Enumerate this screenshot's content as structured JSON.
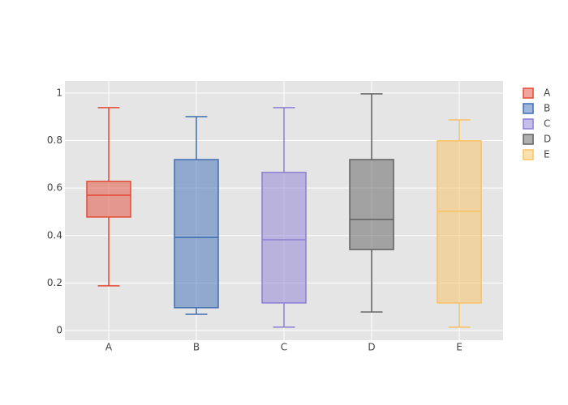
{
  "chart_data": {
    "type": "box",
    "categories": [
      "A",
      "B",
      "C",
      "D",
      "E"
    ],
    "series": [
      {
        "name": "A",
        "color": "#e34a33",
        "min": 0.188,
        "q1": 0.478,
        "median": 0.57,
        "q3": 0.628,
        "max": 0.939
      },
      {
        "name": "B",
        "color": "#3d6eb4",
        "min": 0.068,
        "q1": 0.096,
        "median": 0.392,
        "q3": 0.72,
        "max": 0.901
      },
      {
        "name": "C",
        "color": "#8c7fd4",
        "min": 0.014,
        "q1": 0.116,
        "median": 0.382,
        "q3": 0.666,
        "max": 0.939
      },
      {
        "name": "D",
        "color": "#606060",
        "min": 0.078,
        "q1": 0.341,
        "median": 0.468,
        "q3": 0.72,
        "max": 0.997
      },
      {
        "name": "E",
        "color": "#f9c261",
        "min": 0.014,
        "q1": 0.116,
        "median": 0.502,
        "q3": 0.799,
        "max": 0.887
      }
    ],
    "ylim": [
      -0.041,
      1.051
    ],
    "yticks": [
      0,
      0.2,
      0.4,
      0.6,
      0.8,
      1
    ],
    "grid": true
  }
}
